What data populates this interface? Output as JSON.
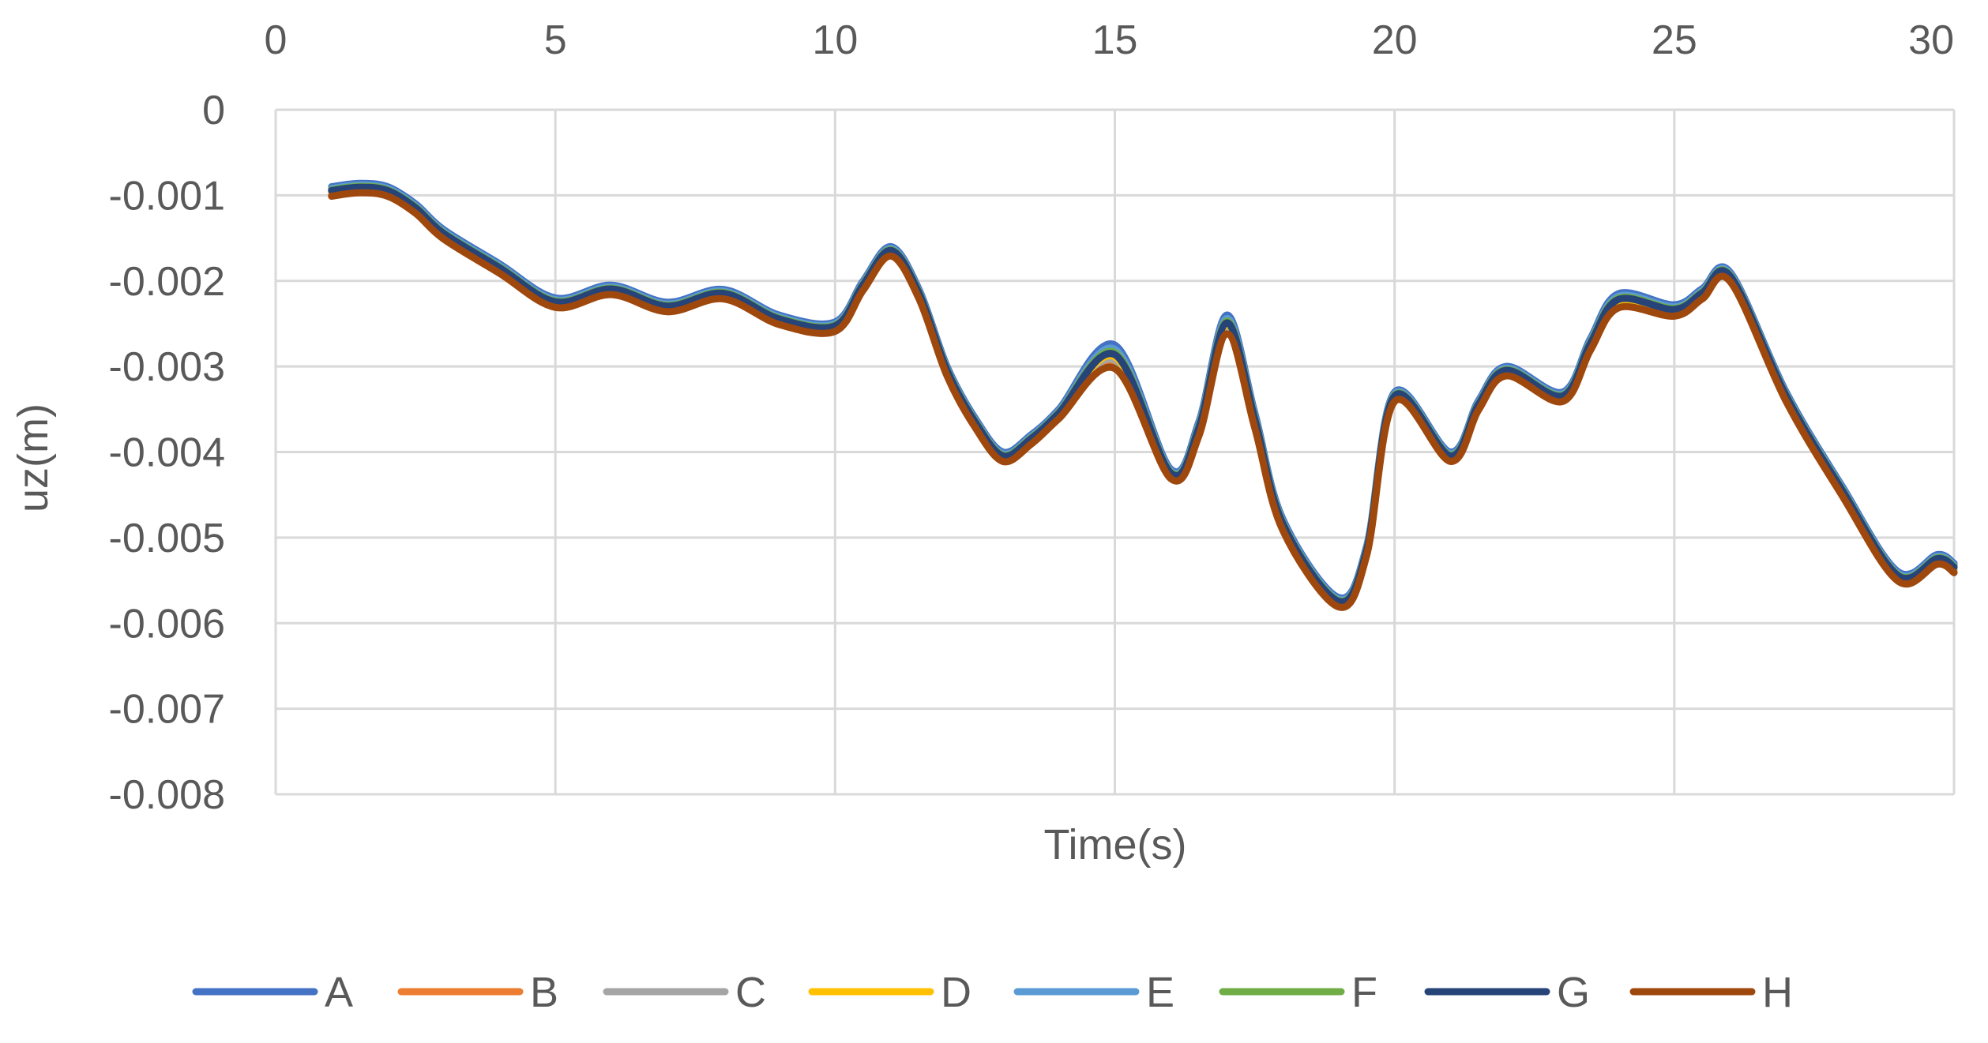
{
  "chart_data": {
    "type": "line",
    "title": "",
    "xlabel": "Time(s)",
    "ylabel": "uz(m)",
    "xlim": [
      0,
      30
    ],
    "ylim": [
      -0.008,
      0
    ],
    "x_ticks": [
      "0",
      "5",
      "10",
      "15",
      "20",
      "25",
      "30"
    ],
    "y_ticks": [
      "0",
      "-0.001",
      "-0.002",
      "-0.003",
      "-0.004",
      "-0.005",
      "-0.006",
      "-0.007",
      "-0.008"
    ],
    "x_axis_position": "top",
    "grid": true,
    "legend_position": "bottom",
    "series": [
      {
        "name": "A",
        "color": "#4472C4",
        "offset_trend": 1.0
      },
      {
        "name": "B",
        "color": "#ED7D31",
        "offset_trend": 0.0
      },
      {
        "name": "C",
        "color": "#A5A5A5",
        "offset_trend": 0.3
      },
      {
        "name": "D",
        "color": "#FFC000",
        "offset_trend": 0.45
      },
      {
        "name": "E",
        "color": "#5B9BD5",
        "offset_trend": 0.8
      },
      {
        "name": "F",
        "color": "#70AD47",
        "offset_trend": 0.65
      },
      {
        "name": "G",
        "color": "#264478",
        "offset_trend": 0.55
      },
      {
        "name": "H",
        "color": "#9E480E",
        "offset_trend": -0.1
      }
    ],
    "base_curve": {
      "x": [
        1,
        1.5,
        2,
        2.5,
        3,
        4,
        5,
        6,
        7,
        8,
        9,
        10,
        10.5,
        11,
        11.5,
        12,
        12.5,
        13,
        13.5,
        14,
        15,
        16,
        16.5,
        17,
        17.5,
        18,
        19,
        19.5,
        20,
        21,
        21.5,
        22,
        23,
        23.5,
        24,
        25,
        25.5,
        26,
        27,
        28,
        29,
        29.7,
        30
      ],
      "y": [
        -0.001,
        -0.00096,
        -0.001,
        -0.0012,
        -0.0015,
        -0.0019,
        -0.0023,
        -0.00215,
        -0.00235,
        -0.0022,
        -0.0025,
        -0.00258,
        -0.0021,
        -0.0017,
        -0.0022,
        -0.0031,
        -0.0037,
        -0.0041,
        -0.0039,
        -0.0036,
        -0.003,
        -0.0043,
        -0.0038,
        -0.0026,
        -0.0037,
        -0.0049,
        -0.0058,
        -0.0052,
        -0.0034,
        -0.0041,
        -0.0035,
        -0.0031,
        -0.0034,
        -0.0028,
        -0.0023,
        -0.0024,
        -0.0022,
        -0.002,
        -0.0034,
        -0.0045,
        -0.0055,
        -0.0053,
        -0.0054
      ]
    },
    "spread": {
      "x": [
        14,
        15,
        16,
        17,
        18,
        19,
        20,
        21,
        22,
        23,
        24,
        25,
        26,
        27,
        28,
        29,
        30
      ],
      "y": [
        0.0001,
        0.00025,
        0.0001,
        0.0002,
        0.00012,
        0.0001,
        0.0001,
        0.0001,
        0.0001,
        0.0001,
        0.00015,
        0.00012,
        0.0001,
        0.0001,
        0.0001,
        0.0001,
        0.0001
      ]
    }
  }
}
